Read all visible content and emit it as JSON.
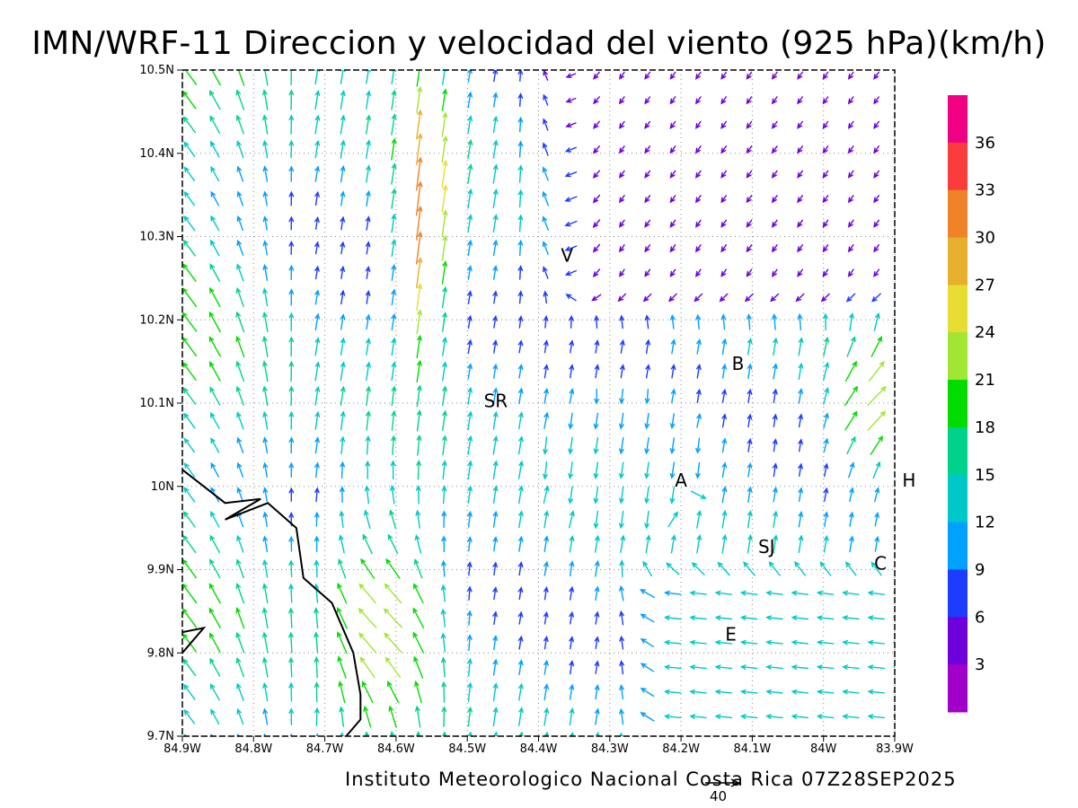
{
  "title": "IMN/WRF-11 Direccion y velocidad del viento (925 hPa)(km/h)",
  "credit": "Instituto Meteorologico Nacional Costa Rica 07Z28SEP2025",
  "reference_vector_label": "40",
  "chart_data": {
    "type": "vector-field",
    "lon_ticks": [
      "84.9W",
      "84.8W",
      "84.7W",
      "84.6W",
      "84.5W",
      "84.4W",
      "84.3W",
      "84.2W",
      "84.1W",
      "84W",
      "83.9W"
    ],
    "lat_ticks": [
      "10.5N",
      "10.4N",
      "10.3N",
      "10.2N",
      "10.1N",
      "10N",
      "9.9N",
      "9.8N",
      "9.7N"
    ],
    "lon_range": [
      -84.9,
      -83.9
    ],
    "lat_range": [
      9.7,
      10.5
    ],
    "grid": "dotted",
    "colorbar": {
      "ticks": [
        "3",
        "6",
        "9",
        "12",
        "15",
        "18",
        "21",
        "24",
        "27",
        "30",
        "33",
        "36"
      ],
      "colors": [
        "#a000c8",
        "#6e00dc",
        "#1e3cff",
        "#00a0ff",
        "#00c8c8",
        "#00d28c",
        "#00dc00",
        "#a0e632",
        "#e6dc32",
        "#e6af2d",
        "#f08228",
        "#fa3c3c",
        "#f00082"
      ]
    },
    "places": [
      {
        "label": "V",
        "lon": -84.36,
        "lat": 10.27
      },
      {
        "label": "B",
        "lon": -84.12,
        "lat": 10.14
      },
      {
        "label": "SR",
        "lon": -84.46,
        "lat": 10.095
      },
      {
        "label": "A",
        "lon": -84.2,
        "lat": 10.0
      },
      {
        "label": "H",
        "lon": -83.88,
        "lat": 10.0
      },
      {
        "label": "SJ",
        "lon": -84.08,
        "lat": 9.92
      },
      {
        "label": "C",
        "lon": -83.92,
        "lat": 9.9
      },
      {
        "label": "E",
        "lon": -84.13,
        "lat": 9.815
      }
    ],
    "coastline": [
      [
        -84.9,
        10.02
      ],
      [
        -84.84,
        9.98
      ],
      [
        -84.79,
        9.985
      ],
      [
        -84.84,
        9.96
      ],
      [
        -84.78,
        9.98
      ],
      [
        -84.74,
        9.95
      ],
      [
        -84.73,
        9.89
      ],
      [
        -84.69,
        9.86
      ],
      [
        -84.66,
        9.8
      ],
      [
        -84.65,
        9.75
      ],
      [
        -84.65,
        9.72
      ],
      [
        -84.67,
        9.7
      ]
    ],
    "coastline2": [
      [
        -84.9,
        9.825
      ],
      [
        -84.87,
        9.83
      ],
      [
        -84.9,
        9.8
      ]
    ],
    "wind_regions": [
      {
        "name": "west-coast",
        "speed_kmh": 14,
        "dir_to": "NW"
      },
      {
        "name": "central-jet",
        "speed_kmh": 34,
        "dir_to": "N"
      },
      {
        "name": "north-east",
        "speed_kmh": 3,
        "dir_to": "SW"
      },
      {
        "name": "central-valley",
        "speed_kmh": 12,
        "dir_to": "S"
      },
      {
        "name": "east-edge",
        "speed_kmh": 24,
        "dir_to": "NE"
      },
      {
        "name": "south-east",
        "speed_kmh": 12,
        "dir_to": "W"
      }
    ]
  }
}
